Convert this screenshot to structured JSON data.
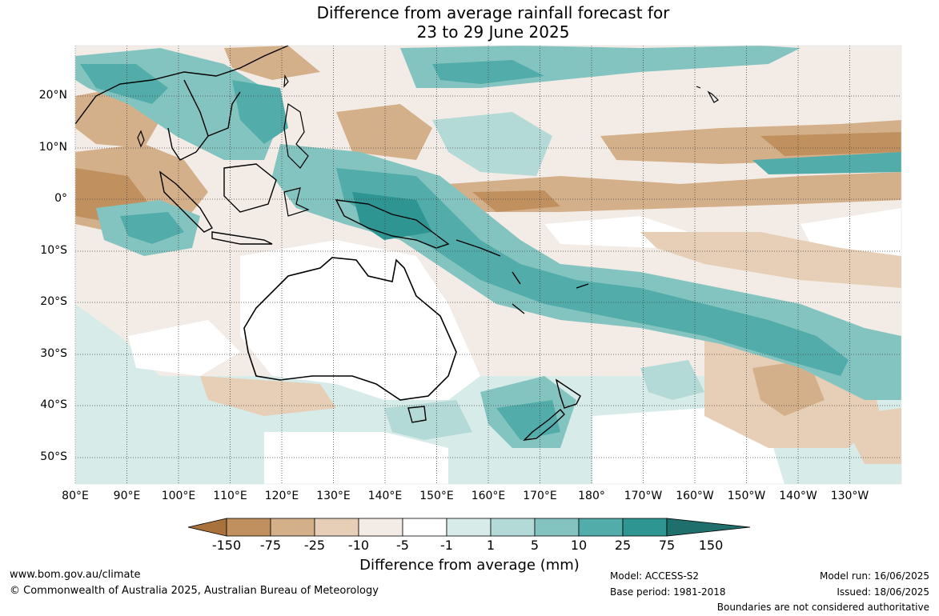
{
  "title": {
    "line1": "Difference from average rainfall forecast for",
    "line2": "23 to 29 June 2025"
  },
  "map": {
    "lat_labels": [
      "20°N",
      "10°N",
      "0°",
      "10°S",
      "20°S",
      "30°S",
      "40°S",
      "50°S"
    ],
    "lon_labels": [
      "80°E",
      "90°E",
      "100°E",
      "110°E",
      "120°E",
      "130°E",
      "140°E",
      "150°E",
      "160°E",
      "170°E",
      "180°",
      "170°W",
      "160°W",
      "150°W",
      "140°W",
      "130°W"
    ]
  },
  "colorbar": {
    "ticks": [
      "-150",
      "-75",
      "-25",
      "-10",
      "-5",
      "-1",
      "1",
      "5",
      "10",
      "25",
      "75",
      "150"
    ],
    "colors": [
      "#a9713b",
      "#c0915e",
      "#d4b08a",
      "#e6cfb6",
      "#f3ece6",
      "#ffffff",
      "#d7ebe9",
      "#b4dad7",
      "#84c4c0",
      "#52aca9",
      "#2e9592",
      "#1f6f6c"
    ],
    "title": "Difference from average (mm)"
  },
  "footer": {
    "website": "www.bom.gov.au/climate",
    "copyright": "© Commonwealth of Australia 2025, Australian Bureau of Meteorology",
    "model": "Model: ACCESS-S2",
    "base_period": "Base period: 1981-2018",
    "model_run": "Model run: 16/06/2025",
    "issued": "Issued: 18/06/2025",
    "disclaimer": "Boundaries are not considered authoritative"
  }
}
